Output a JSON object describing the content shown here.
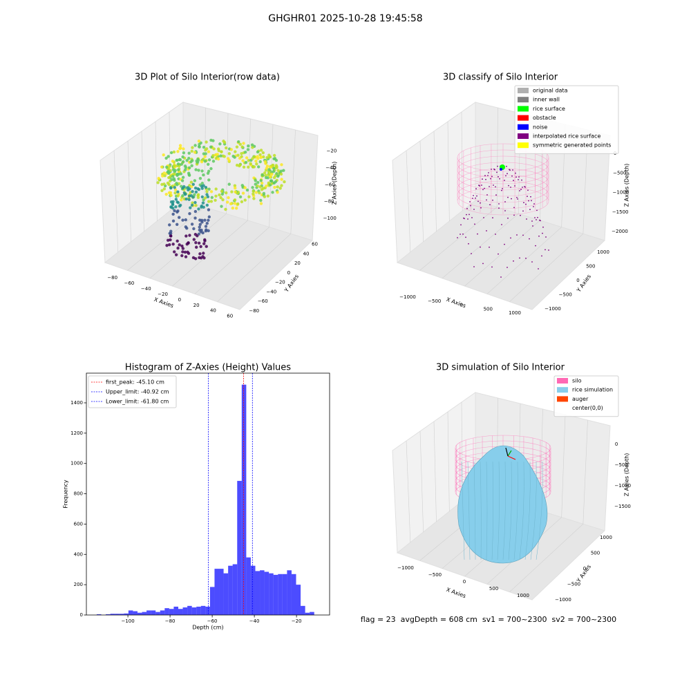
{
  "title": "GHGHR01 2025-10-28 19:45:58",
  "status": "flag = 23  avgDepth = 608 cm  sv1 = 700~2300  sv2 = 700~2300",
  "chart_data": [
    {
      "type": "scatter3d",
      "title": "3D Plot of Silo Interior(row data)",
      "xlabel": "X Axies",
      "ylabel": "Y Axies",
      "zlabel": "Z Axies (Depth)",
      "colormap": "viridis",
      "xlim": [
        -88,
        66
      ],
      "ylim": [
        -86,
        64
      ],
      "zlim": [
        -110,
        -12
      ],
      "xticks": [
        {
          "value": -80,
          "label": "−80"
        },
        {
          "value": -60,
          "label": "−60"
        },
        {
          "value": -40,
          "label": "−40"
        },
        {
          "value": -20,
          "label": "−20"
        },
        0,
        20,
        40,
        60
      ],
      "yticks": [
        {
          "value": -80,
          "label": "−80"
        },
        {
          "value": -60,
          "label": "−60"
        },
        {
          "value": -40,
          "label": "−40"
        },
        {
          "value": -20,
          "label": "−20"
        },
        0,
        20,
        40,
        60
      ],
      "zticks": [
        {
          "value": -100,
          "label": "−100"
        },
        {
          "value": -80,
          "label": "−80"
        },
        {
          "value": -60,
          "label": "−60"
        },
        {
          "value": -40,
          "label": "−40"
        },
        {
          "value": -20,
          "label": "−20"
        }
      ]
    },
    {
      "type": "scatter3d",
      "title": "3D classify of Silo Interior",
      "xlabel": "X Axies",
      "ylabel": "Y Axies",
      "zlabel": "Z Axies (Depth)",
      "xlim": [
        -1200,
        1200
      ],
      "ylim": [
        -1200,
        1200
      ],
      "zlim": [
        -2100,
        100
      ],
      "xticks": [
        {
          "value": -1000,
          "label": "−1000"
        },
        {
          "value": -500,
          "label": "−500"
        },
        0,
        500,
        1000
      ],
      "yticks": [
        {
          "value": -1000,
          "label": "−1000"
        },
        {
          "value": -500,
          "label": "−500"
        },
        0,
        500,
        1000
      ],
      "zticks": [
        {
          "value": -2000,
          "label": "−2000"
        },
        {
          "value": -1500,
          "label": "−1500"
        },
        {
          "value": -1000,
          "label": "−1000"
        },
        {
          "value": -500,
          "label": "−500"
        },
        0
      ],
      "legend_position": "upper right",
      "legend": [
        {
          "name": "original data",
          "color": "#b0b0b0"
        },
        {
          "name": "inner wall",
          "color": "#808080"
        },
        {
          "name": "rice surface",
          "color": "#00ff00"
        },
        {
          "name": "obstacle",
          "color": "#ff0000"
        },
        {
          "name": "noise",
          "color": "#0000ff"
        },
        {
          "name": "interpolated rice surface",
          "color": "#800080"
        },
        {
          "name": "symmetric generated points",
          "color": "#ffff00"
        }
      ]
    },
    {
      "type": "histogram",
      "title": "Histogram of Z-Axies (Height) Values",
      "xlabel": "Depth (cm)",
      "ylabel": "Frequency",
      "color": "#0000ff",
      "alpha": 0.7,
      "xlim": [
        -119.7,
        -4.3
      ],
      "ylim": [
        0,
        1596
      ],
      "xticks": [
        {
          "value": -100,
          "label": "−100"
        },
        {
          "value": -80,
          "label": "−80"
        },
        {
          "value": -60,
          "label": "−60"
        },
        {
          "value": -40,
          "label": "−40"
        },
        {
          "value": -20,
          "label": "−20"
        }
      ],
      "yticks": [
        0,
        200,
        400,
        600,
        800,
        1000,
        1200,
        1400
      ],
      "bins": [
        -114.8,
        -112.65,
        -110.5,
        -108.35,
        -106.2,
        -104.05,
        -101.9,
        -99.75,
        -97.6,
        -95.45,
        -93.3,
        -91.15,
        -89.0,
        -86.85,
        -84.7,
        -82.55,
        -80.4,
        -78.25,
        -76.1,
        -73.95,
        -71.8,
        -69.65,
        -67.5,
        -65.35,
        -63.2,
        -61.05,
        -58.9,
        -56.75,
        -54.6,
        -52.45,
        -50.3,
        -48.15,
        -46.0,
        -43.85,
        -41.7,
        -39.55,
        -37.4,
        -35.25,
        -33.1,
        -30.95,
        -28.8,
        -26.65,
        -24.5,
        -22.35,
        -20.2,
        -18.05,
        -15.9,
        -13.75,
        -11.6
      ],
      "values": [
        5,
        0,
        5,
        8,
        8,
        8,
        10,
        30,
        25,
        15,
        20,
        30,
        30,
        20,
        30,
        45,
        40,
        55,
        40,
        50,
        60,
        50,
        55,
        60,
        55,
        185,
        305,
        305,
        275,
        325,
        335,
        885,
        1520,
        380,
        325,
        290,
        295,
        285,
        275,
        265,
        270,
        270,
        295,
        270,
        200,
        60,
        15,
        20
      ],
      "legend_position": "upper left",
      "lines": [
        {
          "label": "first_peak: -45.10 cm",
          "value": -45.1,
          "color": "#ff0000"
        },
        {
          "label": "Upper_limit: -40.92 cm",
          "value": -40.92,
          "color": "#0000ff"
        },
        {
          "label": "Lower_limit: -61.80 cm",
          "value": -61.8,
          "color": "#0000ff"
        }
      ]
    },
    {
      "type": "surface3d",
      "title": "3D simulation of Silo Interior",
      "xlabel": "X Axies",
      "ylabel": "Y Axies",
      "zlabel": "Z Axies (Depth)",
      "xlim": [
        -1200,
        1200
      ],
      "ylim": [
        -1200,
        1200
      ],
      "zlim": [
        -1800,
        200
      ],
      "xticks": [
        {
          "value": -1000,
          "label": "−1000"
        },
        {
          "value": -500,
          "label": "−500"
        },
        0,
        500,
        1000
      ],
      "yticks": [
        {
          "value": -1000,
          "label": "−1000"
        },
        {
          "value": -500,
          "label": "−500"
        },
        0,
        500,
        1000
      ],
      "zticks": [
        {
          "value": -1500,
          "label": "−1500"
        },
        {
          "value": -1000,
          "label": "−1000"
        },
        {
          "value": -500,
          "label": "−500"
        },
        0
      ],
      "legend_position": "upper right",
      "legend": [
        {
          "name": "silo",
          "color": "#ff69b4"
        },
        {
          "name": "rice simulation",
          "color": "#87ceeb"
        },
        {
          "name": "auger",
          "color": "#ff4500"
        },
        {
          "name": "center(0,0)",
          "color": "#ffffff"
        }
      ]
    }
  ]
}
